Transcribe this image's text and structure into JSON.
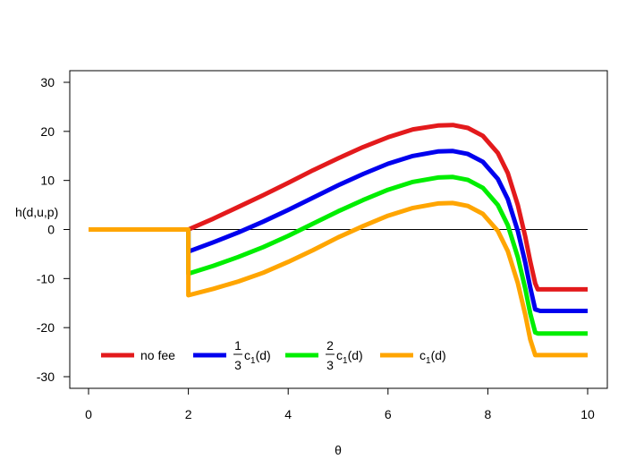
{
  "chart_data": {
    "type": "line",
    "title": "",
    "xlabel": "θ",
    "ylabel": "h(d,u,p)",
    "xlim": [
      0,
      10
    ],
    "ylim": [
      -32,
      32
    ],
    "xticks": [
      0,
      2,
      4,
      6,
      8,
      10
    ],
    "yticks": [
      -30,
      -20,
      -10,
      0,
      10,
      20,
      30
    ],
    "grid": false,
    "reference_line": {
      "y": 0,
      "color": "#000000"
    },
    "legend_position": "bottom-left",
    "series": [
      {
        "name": "no fee",
        "color": "#E31A1C",
        "x": [
          0,
          2,
          2.5,
          3,
          3.5,
          4,
          4.5,
          5,
          5.5,
          6,
          6.5,
          7,
          7.3,
          7.6,
          7.9,
          8.2,
          8.4,
          8.6,
          8.75,
          8.85,
          8.95,
          9.0,
          10
        ],
        "y": [
          0,
          0,
          2.2,
          4.6,
          7.0,
          9.5,
          12.1,
          14.5,
          16.8,
          18.8,
          20.4,
          21.2,
          21.3,
          20.7,
          19.1,
          15.6,
          11.5,
          5.0,
          -1.5,
          -6.5,
          -11.0,
          -12.2,
          -12.2
        ]
      },
      {
        "name": "1/3 c1(d)",
        "legend_prefix": "1",
        "legend_denom": "3",
        "legend_main": "c",
        "legend_sub": "1",
        "legend_suffix": "(d)",
        "color": "#0000EE",
        "x": [
          0,
          2,
          2,
          2.5,
          3,
          3.5,
          4,
          4.5,
          5,
          5.5,
          6,
          6.5,
          7,
          7.3,
          7.6,
          7.9,
          8.2,
          8.4,
          8.6,
          8.75,
          8.85,
          8.95,
          9.05,
          10
        ],
        "y": [
          0,
          0,
          -4.5,
          -2.6,
          -0.6,
          1.6,
          4.0,
          6.5,
          9.0,
          11.3,
          13.4,
          15.0,
          15.9,
          16.0,
          15.4,
          13.8,
          10.3,
          6.2,
          -0.3,
          -6.8,
          -11.8,
          -16.3,
          -16.6,
          -16.6
        ]
      },
      {
        "name": "2/3 c1(d)",
        "legend_prefix": "2",
        "legend_denom": "3",
        "legend_main": "c",
        "legend_sub": "1",
        "legend_suffix": "(d)",
        "color": "#00EE00",
        "x": [
          0,
          2,
          2,
          2.5,
          3,
          3.5,
          4,
          4.5,
          5,
          5.5,
          6,
          6.5,
          7,
          7.3,
          7.6,
          7.9,
          8.2,
          8.4,
          8.6,
          8.75,
          8.85,
          8.95,
          9.0,
          10
        ],
        "y": [
          0,
          0,
          -9.0,
          -7.4,
          -5.6,
          -3.6,
          -1.3,
          1.2,
          3.7,
          6.0,
          8.1,
          9.7,
          10.6,
          10.7,
          10.1,
          8.5,
          5.0,
          0.9,
          -5.6,
          -12.1,
          -17.1,
          -21.0,
          -21.2,
          -21.2
        ]
      },
      {
        "name": "c1(d)",
        "legend_prefix": "",
        "legend_denom": "",
        "legend_main": "c",
        "legend_sub": "1",
        "legend_suffix": "(d)",
        "color": "#FFA500",
        "x": [
          0,
          2,
          2,
          2.5,
          3,
          3.5,
          4,
          4.5,
          5,
          5.5,
          6,
          6.5,
          7,
          7.3,
          7.6,
          7.9,
          8.2,
          8.4,
          8.6,
          8.75,
          8.85,
          8.95,
          9.0,
          10
        ],
        "y": [
          0,
          0,
          -13.4,
          -12.1,
          -10.6,
          -8.8,
          -6.6,
          -4.2,
          -1.6,
          0.7,
          2.8,
          4.4,
          5.3,
          5.4,
          4.8,
          3.2,
          -0.3,
          -4.4,
          -10.9,
          -17.4,
          -22.4,
          -25.6,
          -25.6,
          -25.6
        ]
      }
    ]
  }
}
